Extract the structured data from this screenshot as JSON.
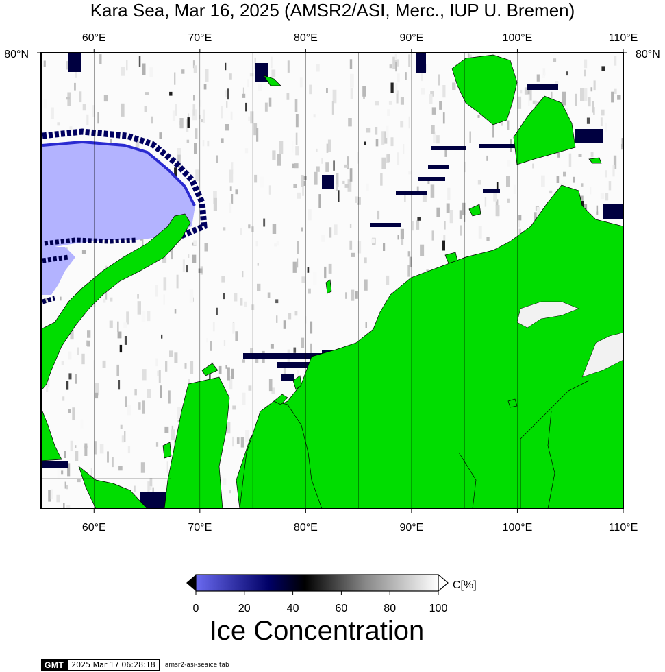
{
  "map": {
    "title": "Kara Sea, Mar 16, 2025 (AMSR2/ASI, Merc., IUP U. Bremen)",
    "lon_ticks": [
      "60°E",
      "70°E",
      "80°E",
      "90°E",
      "100°E",
      "110°E"
    ],
    "lat_ticks": [
      "80°N"
    ],
    "lon_range": [
      55,
      110
    ],
    "projection": "Mercator",
    "land_color": "#00dd00",
    "open_water_color": "#b3b3ff",
    "colorbar": {
      "title": "Ice Concentration",
      "unit_label": "C[%]",
      "ticks": [
        "0",
        "20",
        "40",
        "60",
        "80",
        "100"
      ],
      "range": [
        0,
        100
      ],
      "colors": [
        "#6a6af0",
        "#000066",
        "#000000",
        "#808080",
        "#ffffff"
      ]
    },
    "footer": {
      "logo": "GMT",
      "timestamp": "2025 Mar 17 06:28:18",
      "source": "amsr2-asi-seaice.tab"
    }
  }
}
